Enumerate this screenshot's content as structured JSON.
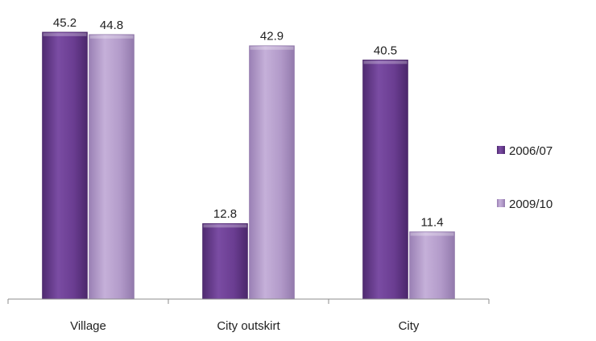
{
  "chart_data": {
    "type": "bar",
    "title": "",
    "xlabel": "",
    "ylabel": "",
    "ylim": [
      0,
      46
    ],
    "categories": [
      "Village",
      "City outskirt",
      "City"
    ],
    "series": [
      {
        "name": "2006/07",
        "values": [
          45.2,
          12.8,
          40.5
        ],
        "labels": [
          "45.2",
          "12.8",
          "40.5"
        ],
        "color": "#6a3d91"
      },
      {
        "name": "2009/10",
        "values": [
          44.8,
          42.9,
          11.4
        ],
        "labels": [
          "44.8",
          "42.9",
          "11.4"
        ],
        "color": "#b29ac9"
      }
    ],
    "legend_position": "right",
    "grid": false
  }
}
